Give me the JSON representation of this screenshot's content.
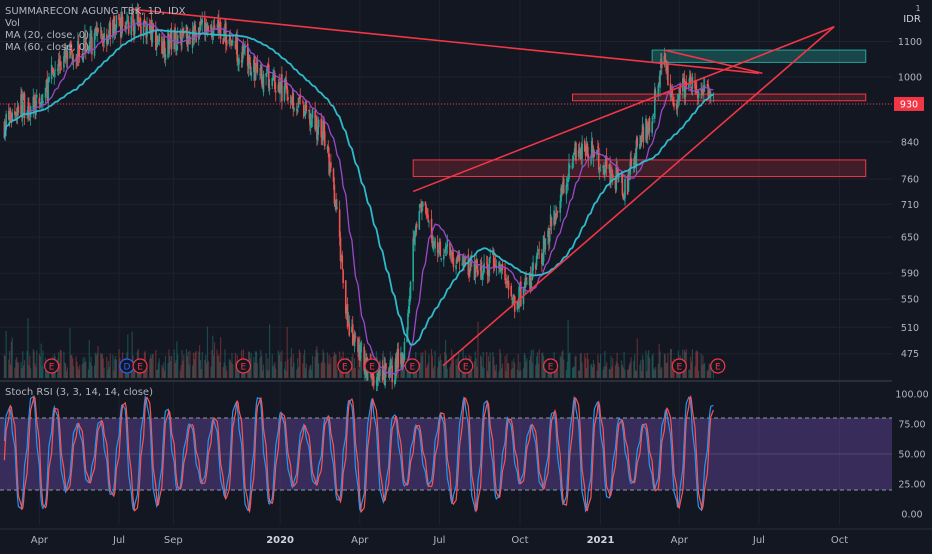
{
  "legend": {
    "symbol_line": "SUMMARECON AGUNG TBK, 1D, IDX",
    "vol": "Vol",
    "ma20": "MA (20, close, 0)",
    "ma60": "MA (60, close, 0)"
  },
  "rsi_legend": "Stoch RSI (3, 3, 14, 14, close)",
  "currency": "IDR",
  "currency_marker": "1",
  "colors": {
    "background": "#131722",
    "up": "#26a69a",
    "down": "#ef5350",
    "ma20": "#9c48c9",
    "ma60": "#2fb9c9",
    "trendline": "#f23645",
    "zone_red_fill": "#f2364533",
    "zone_green_fill": "#26a69a55",
    "rsi_band": "#7e57c2",
    "rsi_k": "#2196f3",
    "rsi_d": "#ff5252"
  },
  "chart_data": [
    {
      "type": "candlestick",
      "title": "SUMMARECON AGUNG TBK, 1D, IDX",
      "price_axis": {
        "scale": "log",
        "ticks": [
          "1100",
          "1000",
          "930",
          "840",
          "760",
          "710",
          "650",
          "590",
          "550",
          "510",
          "475"
        ],
        "current_price": "930"
      },
      "time_axis": {
        "ticks": [
          "Apr",
          "Jul",
          "Sep",
          "2020",
          "Apr",
          "Jul",
          "Oct",
          "2021",
          "Apr",
          "Jul",
          "Oct"
        ]
      },
      "close_path": [
        [
          "2019-02-20",
          880
        ],
        [
          "2019-03-10",
          930
        ],
        [
          "2019-04-01",
          920
        ],
        [
          "2019-04-20",
          1030
        ],
        [
          "2019-05-15",
          1080
        ],
        [
          "2019-06-10",
          1110
        ],
        [
          "2019-07-01",
          1150
        ],
        [
          "2019-07-25",
          1160
        ],
        [
          "2019-08-20",
          1090
        ],
        [
          "2019-09-10",
          1120
        ],
        [
          "2019-10-01",
          1130
        ],
        [
          "2019-10-20",
          1150
        ],
        [
          "2019-11-10",
          1090
        ],
        [
          "2019-12-01",
          1020
        ],
        [
          "2019-12-20",
          990
        ],
        [
          "2020-01-10",
          960
        ],
        [
          "2020-02-01",
          900
        ],
        [
          "2020-02-20",
          860
        ],
        [
          "2020-03-05",
          700
        ],
        [
          "2020-03-20",
          500
        ],
        [
          "2020-04-05",
          470
        ],
        [
          "2020-04-20",
          440
        ],
        [
          "2020-05-10",
          455
        ],
        [
          "2020-05-22",
          480
        ],
        [
          "2020-06-03",
          680
        ],
        [
          "2020-06-12",
          700
        ],
        [
          "2020-06-25",
          640
        ],
        [
          "2020-07-15",
          620
        ],
        [
          "2020-08-01",
          600
        ],
        [
          "2020-08-20",
          590
        ],
        [
          "2020-09-05",
          610
        ],
        [
          "2020-09-25",
          545
        ],
        [
          "2020-10-10",
          570
        ],
        [
          "2020-10-30",
          640
        ],
        [
          "2020-11-15",
          720
        ],
        [
          "2020-12-01",
          820
        ],
        [
          "2020-12-15",
          830
        ],
        [
          "2020-12-30",
          800
        ],
        [
          "2021-01-15",
          770
        ],
        [
          "2021-01-30",
          740
        ],
        [
          "2021-02-15",
          850
        ],
        [
          "2021-03-01",
          900
        ],
        [
          "2021-03-12",
          1050
        ],
        [
          "2021-03-25",
          940
        ],
        [
          "2021-04-10",
          980
        ],
        [
          "2021-04-25",
          960
        ],
        [
          "2021-05-10",
          930
        ]
      ],
      "moving_averages": [
        {
          "name": "MA (20, close, 0)",
          "period": 20
        },
        {
          "name": "MA (60, close, 0)",
          "period": 60
        }
      ],
      "zones": [
        {
          "kind": "supply",
          "from": "2021-03-01",
          "to": "2021-10-31",
          "low": 1040,
          "high": 1075,
          "color": "green"
        },
        {
          "kind": "resistance",
          "from": "2020-11-30",
          "to": "2021-10-31",
          "low": 938,
          "high": 955,
          "color": "red"
        },
        {
          "kind": "support",
          "from": "2020-06-01",
          "to": "2021-10-31",
          "low": 765,
          "high": 800,
          "color": "red"
        }
      ],
      "trendlines": [
        {
          "from": [
            "2019-07-15",
            1200
          ],
          "to": [
            "2021-07-01",
            1010
          ]
        },
        {
          "from": [
            "2020-06-01",
            735
          ],
          "to": [
            "2021-09-25",
            1145
          ]
        },
        {
          "from": [
            "2020-07-05",
            460
          ],
          "to": [
            "2021-09-25",
            1145
          ]
        },
        {
          "from": [
            "2021-03-15",
            1075
          ],
          "to": [
            "2021-07-05",
            1010
          ]
        }
      ],
      "event_markers": [
        {
          "date": "2019-04-15",
          "label": "E"
        },
        {
          "date": "2019-07-10",
          "label": "D"
        },
        {
          "date": "2019-07-25",
          "label": "E"
        },
        {
          "date": "2019-11-20",
          "label": "E"
        },
        {
          "date": "2020-03-15",
          "label": "E"
        },
        {
          "date": "2020-04-15",
          "label": "E"
        },
        {
          "date": "2020-05-31",
          "label": "E"
        },
        {
          "date": "2020-07-31",
          "label": "E"
        },
        {
          "date": "2020-11-05",
          "label": "E"
        },
        {
          "date": "2021-04-01",
          "label": "E"
        },
        {
          "date": "2021-05-15",
          "label": "E"
        }
      ]
    },
    {
      "type": "line",
      "title": "Stoch RSI (3, 3, 14, 14, close)",
      "y_axis": {
        "ticks": [
          "100.00",
          "75.00",
          "50.00",
          "25.00",
          "0.00"
        ],
        "ylim": [
          0,
          100
        ]
      },
      "band": [
        20,
        80
      ],
      "series": [
        {
          "name": "K",
          "color": "#2196f3"
        },
        {
          "name": "D",
          "color": "#ff5252"
        }
      ]
    }
  ]
}
